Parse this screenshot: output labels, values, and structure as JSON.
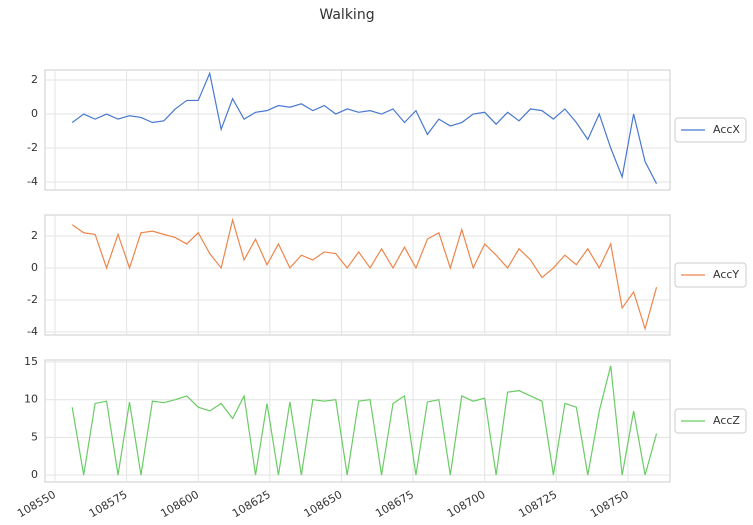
{
  "title": "Walking",
  "chart_data": [
    {
      "type": "line",
      "x": [
        108556,
        108560,
        108564,
        108568,
        108572,
        108576,
        108580,
        108584,
        108588,
        108592,
        108596,
        108600,
        108604,
        108608,
        108612,
        108616,
        108620,
        108624,
        108628,
        108632,
        108636,
        108640,
        108644,
        108648,
        108652,
        108656,
        108660,
        108664,
        108668,
        108672,
        108676,
        108680,
        108684,
        108688,
        108692,
        108696,
        108700,
        108704,
        108708,
        108712,
        108716,
        108720,
        108724,
        108728,
        108732,
        108736,
        108740,
        108744,
        108748,
        108752,
        108756,
        108760
      ],
      "series": [
        {
          "name": "AccX",
          "color": "#4878d0",
          "values": [
            -0.5,
            0,
            -0.3,
            0,
            -0.3,
            -0.1,
            -0.2,
            -0.5,
            -0.4,
            0.3,
            0.8,
            0.8,
            2.4,
            -0.9,
            0.9,
            -0.3,
            0.1,
            0.2,
            0.5,
            0.4,
            0.6,
            0.2,
            0.5,
            0,
            0.3,
            0.1,
            0.2,
            0,
            0.3,
            -0.5,
            0.2,
            -1.2,
            -0.3,
            -0.7,
            -0.5,
            0,
            0.1,
            -0.6,
            0.1,
            -0.4,
            0.3,
            0.2,
            -0.3,
            0.3,
            -0.5,
            -1.5,
            0,
            -2,
            -3.7,
            0,
            -2.8,
            -4.1
          ]
        }
      ],
      "xlim": [
        108546.5,
        108764.7
      ],
      "xticks": [
        108550,
        108575,
        108600,
        108625,
        108650,
        108675,
        108700,
        108725,
        108750
      ],
      "ylim": [
        -4.47,
        2.59
      ],
      "yticks": [
        -4,
        -2,
        0,
        2
      ],
      "grid": true
    },
    {
      "type": "line",
      "x": [
        108556,
        108560,
        108564,
        108568,
        108572,
        108576,
        108580,
        108584,
        108588,
        108592,
        108596,
        108600,
        108604,
        108608,
        108612,
        108616,
        108620,
        108624,
        108628,
        108632,
        108636,
        108640,
        108644,
        108648,
        108652,
        108656,
        108660,
        108664,
        108668,
        108672,
        108676,
        108680,
        108684,
        108688,
        108692,
        108696,
        108700,
        108704,
        108708,
        108712,
        108716,
        108720,
        108724,
        108728,
        108732,
        108736,
        108740,
        108744,
        108748,
        108752,
        108756,
        108760
      ],
      "series": [
        {
          "name": "AccY",
          "color": "#ee854a",
          "values": [
            2.7,
            2.2,
            2.1,
            0,
            2.1,
            0,
            2.2,
            2.3,
            2.1,
            1.9,
            1.5,
            2.2,
            0.9,
            0,
            3.0,
            0.5,
            1.8,
            0.2,
            1.5,
            0,
            0.8,
            0.5,
            1.0,
            0.9,
            0,
            1.0,
            0,
            1.2,
            0,
            1.3,
            0,
            1.8,
            2.2,
            0,
            2.4,
            0,
            1.5,
            0.8,
            0,
            1.2,
            0.5,
            -0.6,
            0,
            0.8,
            0.2,
            1.2,
            0,
            1.5,
            -2.5,
            -1.5,
            -3.8,
            -1.2
          ]
        }
      ],
      "xlim": [
        108546.5,
        108764.7
      ],
      "xticks": [
        108550,
        108575,
        108600,
        108625,
        108650,
        108675,
        108700,
        108725,
        108750
      ],
      "ylim": [
        -4.19,
        3.31
      ],
      "yticks": [
        -4,
        -2,
        0,
        2
      ],
      "grid": true
    },
    {
      "type": "line",
      "x": [
        108556,
        108560,
        108564,
        108568,
        108572,
        108576,
        108580,
        108584,
        108588,
        108592,
        108596,
        108600,
        108604,
        108608,
        108612,
        108616,
        108620,
        108624,
        108628,
        108632,
        108636,
        108640,
        108644,
        108648,
        108652,
        108656,
        108660,
        108664,
        108668,
        108672,
        108676,
        108680,
        108684,
        108688,
        108692,
        108696,
        108700,
        108704,
        108708,
        108712,
        108716,
        108720,
        108724,
        108728,
        108732,
        108736,
        108740,
        108744,
        108748,
        108752,
        108756,
        108760
      ],
      "series": [
        {
          "name": "AccZ",
          "color": "#6acc64",
          "values": [
            9,
            0,
            9.5,
            9.8,
            0,
            9.7,
            0,
            9.8,
            9.6,
            10,
            10.5,
            9,
            8.5,
            9.5,
            7.5,
            10.5,
            0,
            9.5,
            0,
            9.7,
            0,
            10,
            9.8,
            10,
            0,
            9.8,
            10,
            0,
            9.5,
            10.5,
            0,
            9.7,
            10,
            0,
            10.5,
            9.8,
            10.2,
            0,
            11,
            11.2,
            10.5,
            9.8,
            0,
            9.5,
            9,
            0,
            8.5,
            14.5,
            0,
            8.5,
            0,
            5.5
          ]
        }
      ],
      "xlim": [
        108546.5,
        108764.7
      ],
      "xticks": [
        108550,
        108575,
        108600,
        108625,
        108650,
        108675,
        108700,
        108725,
        108750
      ],
      "ylim": [
        -0.93,
        15.27
      ],
      "yticks": [
        0,
        5,
        10,
        15
      ],
      "grid": true
    }
  ]
}
